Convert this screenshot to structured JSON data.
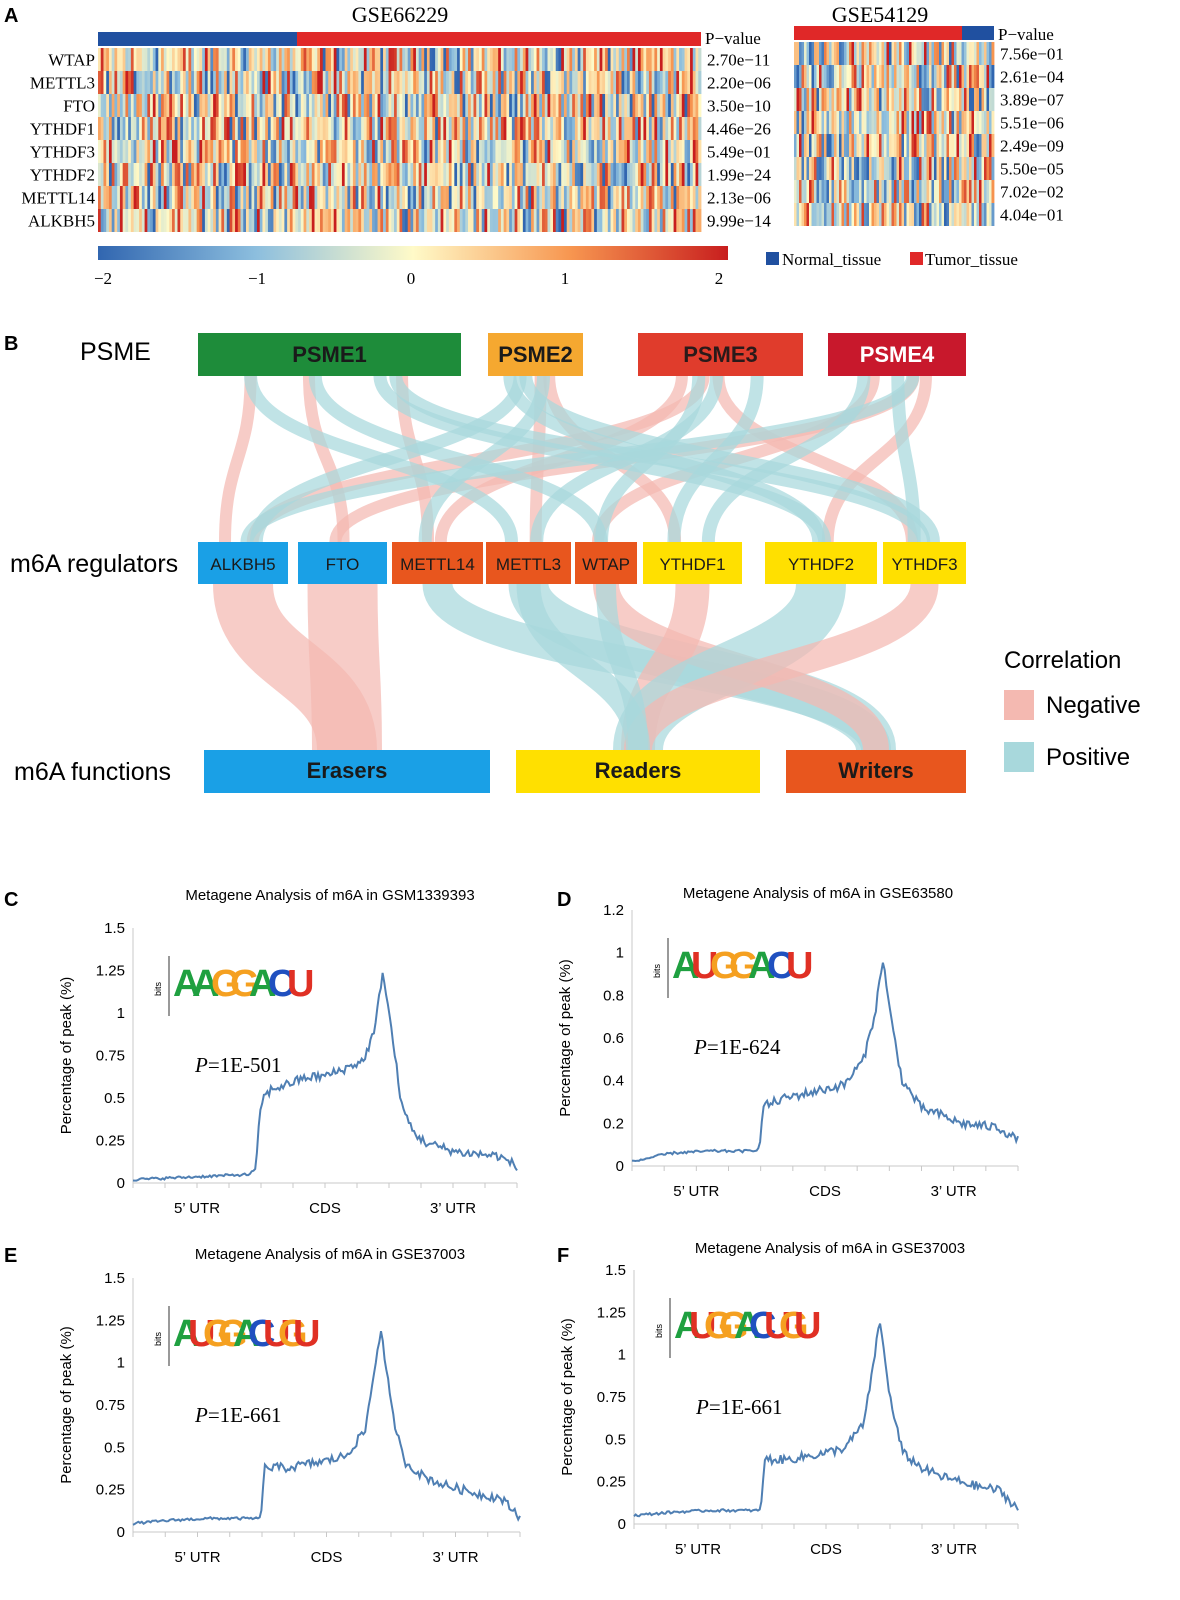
{
  "panel_letters": [
    "A",
    "B",
    "C",
    "D",
    "E",
    "F"
  ],
  "colors": {
    "normal": "#2050a0",
    "tumor": "#e02828",
    "line": "#4f7fb3",
    "negative": "#f4b9b1",
    "positive": "#a8d8dc",
    "psme1": "#1e8c3a",
    "psme2": "#f5a830",
    "psme3": "#e03c2c",
    "psme4": "#c8182c",
    "eraser": "#1aa0e6",
    "writer": "#e8561e",
    "reader": "#ffe000"
  },
  "heatmap": {
    "legend_normal": "Normal_tissue",
    "legend_tumor": "Tumor_tissue",
    "colorbar_ticks": [
      "−2",
      "−1",
      "0",
      "1",
      "2"
    ],
    "pvalue_header": "P−value",
    "datasets": [
      {
        "title": "GSE66229",
        "normal_fraction": 0.33,
        "normal_position": "left",
        "genes": [
          "WTAP",
          "METTL3",
          "FTO",
          "YTHDF1",
          "YTHDF3",
          "YTHDF2",
          "METTL14",
          "ALKBH5"
        ],
        "pvalues": [
          "2.70e−11",
          "2.20e−06",
          "3.50e−10",
          "4.46e−26",
          "5.49e−01",
          "1.99e−24",
          "2.13e−06",
          "9.99e−14"
        ]
      },
      {
        "title": "GSE54129",
        "normal_fraction": 0.16,
        "normal_position": "right",
        "genes": [],
        "pvalues": [
          "7.56e−01",
          "2.61e−04",
          "3.89e−07",
          "5.51e−06",
          "2.49e−09",
          "5.50e−05",
          "7.02e−02",
          "4.04e−01"
        ]
      }
    ]
  },
  "sankey": {
    "row_labels": [
      "PSME",
      "m6A regulators",
      "m6A functions"
    ],
    "psme": [
      "PSME1",
      "PSME2",
      "PSME3",
      "PSME4"
    ],
    "regulators": [
      "ALKBH5",
      "FTO",
      "METTL14",
      "METTL3",
      "WTAP",
      "YTHDF1",
      "YTHDF2",
      "YTHDF3"
    ],
    "functions": [
      "Erasers",
      "Readers",
      "Writers"
    ],
    "legend_title": "Correlation",
    "legend_items": [
      "Negative",
      "Positive"
    ]
  },
  "chart_data": [
    {
      "panel": "C",
      "type": "line",
      "title": "Metagene Analysis of m6A in GSM1339393",
      "ylabel": "Percentage of peak (%)",
      "ylim": [
        0,
        1.5
      ],
      "yticks": [
        "0",
        "0.25",
        "0.5",
        "0.75",
        "1",
        "1.25",
        "1.5"
      ],
      "regions": [
        "5’ UTR",
        "CDS",
        "3’ UTR"
      ],
      "pvalue_prefix": "P",
      "pvalue_text": "=1E-501",
      "motif": "AAGGACU",
      "x": [
        0,
        0.1,
        0.2,
        0.3,
        0.32,
        0.33,
        0.34,
        0.36,
        0.4,
        0.45,
        0.5,
        0.55,
        0.6,
        0.63,
        0.65,
        0.67,
        0.7,
        0.73,
        0.76,
        0.8,
        0.85,
        0.9,
        0.95,
        1.0
      ],
      "y": [
        0.02,
        0.03,
        0.04,
        0.05,
        0.08,
        0.42,
        0.5,
        0.55,
        0.58,
        0.62,
        0.63,
        0.67,
        0.72,
        0.9,
        1.25,
        0.95,
        0.45,
        0.3,
        0.24,
        0.21,
        0.18,
        0.17,
        0.16,
        0.1
      ]
    },
    {
      "panel": "D",
      "type": "line",
      "title": "Metagene Analysis of m6A in GSE63580",
      "ylabel": "Percentage of peak (%)",
      "ylim": [
        0,
        1.2
      ],
      "yticks": [
        "0",
        "0.2",
        "0.4",
        "0.6",
        "0.8",
        "1",
        "1.2"
      ],
      "regions": [
        "5’ UTR",
        "CDS",
        "3’ UTR"
      ],
      "pvalue_prefix": "P",
      "pvalue_text": "=1E-624",
      "motif": "AUGGACU",
      "x": [
        0,
        0.1,
        0.2,
        0.3,
        0.33,
        0.34,
        0.4,
        0.5,
        0.55,
        0.6,
        0.63,
        0.65,
        0.67,
        0.7,
        0.75,
        0.8,
        0.85,
        0.9,
        0.95,
        1.0
      ],
      "y": [
        0.02,
        0.06,
        0.07,
        0.07,
        0.08,
        0.28,
        0.32,
        0.36,
        0.38,
        0.5,
        0.72,
        0.97,
        0.7,
        0.4,
        0.27,
        0.24,
        0.2,
        0.19,
        0.18,
        0.12
      ]
    },
    {
      "panel": "E",
      "type": "line",
      "title": "Metagene Analysis of m6A in GSE37003",
      "ylabel": "Percentage of peak (%)",
      "ylim": [
        0,
        1.5
      ],
      "yticks": [
        "0",
        "0.25",
        "0.5",
        "0.75",
        "1",
        "1.25",
        "1.5"
      ],
      "regions": [
        "5’ UTR",
        "CDS",
        "3’ UTR"
      ],
      "pvalue_prefix": "P",
      "pvalue_text": "=1E-661",
      "motif": "AUGGACUGU",
      "x": [
        0,
        0.1,
        0.2,
        0.3,
        0.33,
        0.34,
        0.4,
        0.5,
        0.55,
        0.6,
        0.64,
        0.67,
        0.7,
        0.75,
        0.8,
        0.85,
        0.9,
        0.95,
        1.0
      ],
      "y": [
        0.05,
        0.07,
        0.08,
        0.08,
        0.08,
        0.38,
        0.38,
        0.42,
        0.45,
        0.6,
        1.2,
        0.7,
        0.42,
        0.33,
        0.28,
        0.25,
        0.22,
        0.2,
        0.09
      ]
    },
    {
      "panel": "F",
      "type": "line",
      "title": "Metagene Analysis of m6A in GSE37003",
      "ylabel": "Percentage of peak (%)",
      "ylim": [
        0,
        1.5
      ],
      "yticks": [
        "0",
        "0.25",
        "0.5",
        "0.75",
        "1",
        "1.25",
        "1.5"
      ],
      "regions": [
        "5’ UTR",
        "CDS",
        "3’ UTR"
      ],
      "pvalue_prefix": "P",
      "pvalue_text": "=1E-661",
      "motif": "AUGGACUGU",
      "x": [
        0,
        0.1,
        0.2,
        0.3,
        0.33,
        0.34,
        0.4,
        0.5,
        0.55,
        0.6,
        0.64,
        0.67,
        0.7,
        0.75,
        0.8,
        0.85,
        0.9,
        0.95,
        1.0
      ],
      "y": [
        0.05,
        0.07,
        0.08,
        0.08,
        0.08,
        0.38,
        0.38,
        0.42,
        0.45,
        0.6,
        1.2,
        0.7,
        0.42,
        0.33,
        0.28,
        0.25,
        0.22,
        0.2,
        0.09
      ]
    }
  ]
}
